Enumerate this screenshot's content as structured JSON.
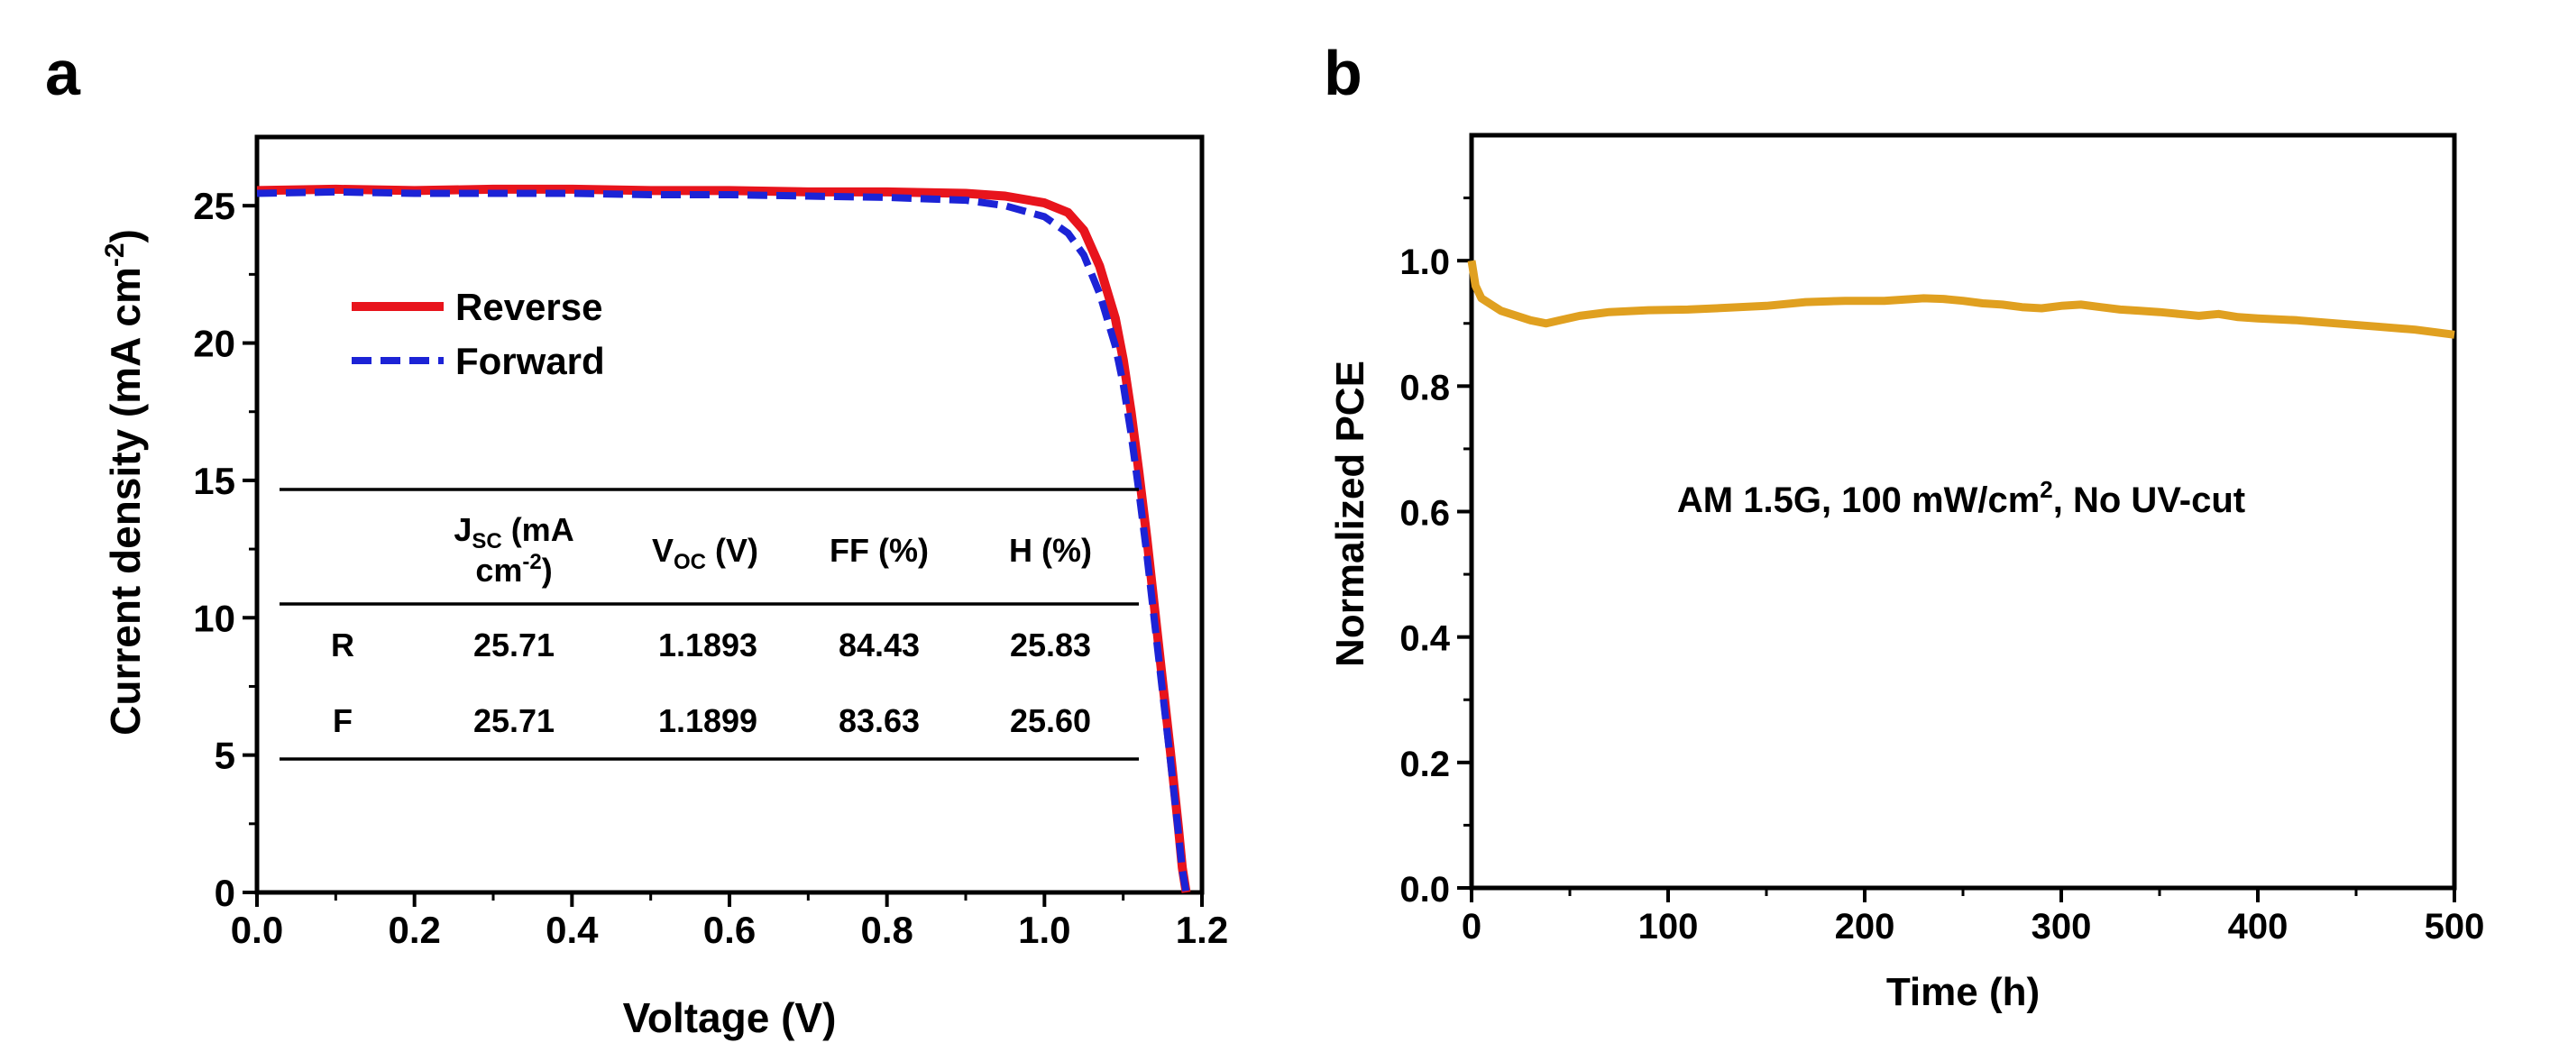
{
  "panel_a": {
    "letter": "a",
    "legend": {
      "reverse": "Reverse",
      "forward": "Forward"
    },
    "table": {
      "headers": {
        "jsc_line1": "J",
        "jsc_sub": "SC",
        "jsc_rest": " (mA",
        "jsc_line2": "cm",
        "jsc_line2_sup": "-2",
        "jsc_line2_end": ")",
        "voc_main": "V",
        "voc_sub": "OC",
        "voc_rest": " (V)",
        "ff": "FF (%)",
        "h": "H (%)"
      },
      "rows": [
        {
          "label": "R",
          "jsc": "25.71",
          "voc": "1.1893",
          "ff": "84.43",
          "h": "25.83"
        },
        {
          "label": "F",
          "jsc": "25.71",
          "voc": "1.1899",
          "ff": "83.63",
          "h": "25.60"
        }
      ]
    }
  },
  "panel_b": {
    "letter": "b",
    "annotation": {
      "main": "AM 1.5G, 100 mW/cm",
      "sup": "2",
      "tail": ", No UV-cut"
    }
  },
  "chart_data": [
    {
      "type": "line",
      "xlabel": "Voltage (V)",
      "ylabel": "Current density (mA cm⁻²)",
      "xlim": [
        0.0,
        1.2
      ],
      "ylim": [
        0,
        27.5
      ],
      "xticks": [
        "0.0",
        "0.2",
        "0.4",
        "0.6",
        "0.8",
        "1.0",
        "1.2"
      ],
      "yticks": [
        "0",
        "5",
        "10",
        "15",
        "20",
        "25"
      ],
      "legend_position": "upper-left",
      "series": [
        {
          "name": "Reverse",
          "color": "#e8141c",
          "style": "solid",
          "x": [
            0.0,
            0.1,
            0.2,
            0.3,
            0.4,
            0.5,
            0.6,
            0.7,
            0.8,
            0.9,
            0.95,
            1.0,
            1.03,
            1.05,
            1.07,
            1.09,
            1.1,
            1.11,
            1.12,
            1.13,
            1.14,
            1.15,
            1.16,
            1.17,
            1.175,
            1.18
          ],
          "y": [
            25.55,
            25.6,
            25.55,
            25.6,
            25.6,
            25.55,
            25.55,
            25.5,
            25.5,
            25.45,
            25.35,
            25.1,
            24.75,
            24.1,
            22.8,
            20.9,
            19.4,
            17.5,
            15.3,
            12.9,
            10.3,
            7.7,
            5.1,
            2.4,
            0.9,
            0.0
          ]
        },
        {
          "name": "Forward",
          "color": "#1c23d6",
          "style": "dashed",
          "x": [
            0.0,
            0.1,
            0.2,
            0.3,
            0.4,
            0.5,
            0.6,
            0.7,
            0.8,
            0.9,
            0.95,
            1.0,
            1.03,
            1.05,
            1.07,
            1.09,
            1.1,
            1.11,
            1.12,
            1.13,
            1.14,
            1.15,
            1.16,
            1.17,
            1.175,
            1.18
          ],
          "y": [
            25.45,
            25.5,
            25.45,
            25.45,
            25.45,
            25.4,
            25.4,
            25.35,
            25.3,
            25.2,
            25.0,
            24.6,
            24.0,
            23.2,
            21.8,
            19.9,
            18.5,
            16.7,
            14.6,
            12.3,
            9.8,
            7.3,
            4.8,
            2.2,
            0.8,
            0.0
          ]
        }
      ]
    },
    {
      "type": "line",
      "xlabel": "Time (h)",
      "ylabel": "Normalized PCE",
      "xlim": [
        0,
        500
      ],
      "ylim": [
        0.0,
        1.2
      ],
      "xticks": [
        "0",
        "100",
        "200",
        "300",
        "400",
        "500"
      ],
      "yticks": [
        "0.0",
        "0.2",
        "0.4",
        "0.6",
        "0.8",
        "1.0"
      ],
      "series": [
        {
          "color": "#e0a020",
          "x": [
            0,
            2,
            5,
            10,
            15,
            20,
            30,
            38,
            45,
            55,
            70,
            90,
            110,
            130,
            150,
            170,
            190,
            210,
            230,
            240,
            250,
            260,
            270,
            280,
            290,
            300,
            310,
            320,
            330,
            340,
            350,
            360,
            370,
            380,
            390,
            400,
            420,
            440,
            460,
            480,
            500
          ],
          "y": [
            1.0,
            0.96,
            0.94,
            0.93,
            0.92,
            0.915,
            0.905,
            0.9,
            0.905,
            0.912,
            0.918,
            0.921,
            0.922,
            0.925,
            0.928,
            0.934,
            0.936,
            0.936,
            0.94,
            0.939,
            0.936,
            0.932,
            0.93,
            0.926,
            0.924,
            0.928,
            0.93,
            0.926,
            0.922,
            0.92,
            0.918,
            0.915,
            0.912,
            0.915,
            0.91,
            0.908,
            0.905,
            0.9,
            0.895,
            0.89,
            0.882
          ]
        }
      ]
    }
  ]
}
